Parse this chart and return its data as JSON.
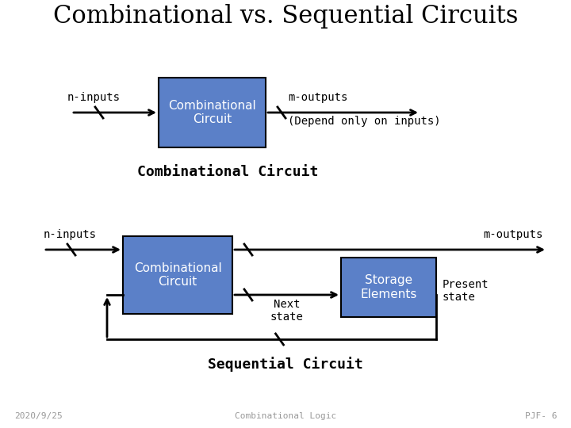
{
  "title": "Combinational vs. Sequential Circuits",
  "title_fontsize": 22,
  "title_font": "serif",
  "bg_color": "#ffffff",
  "box_color": "#5B80C8",
  "box_edge_color": "#000000",
  "text_color": "#000000",
  "font_color_white": "#ffffff",
  "comb_label": "Combinational\nCircuit",
  "storage_label": "Storage\nElements",
  "comb_circuit_label": "Combinational Circuit",
  "seq_circuit_label": "Sequential Circuit",
  "n_inputs": "n-inputs",
  "m_outputs": "m-outputs",
  "depend_label": "(Depend only on inputs)",
  "next_state": "Next\nstate",
  "present_state": "Present\nstate",
  "footer_left": "2020/9/25",
  "footer_center": "Combinational Logic",
  "footer_right": "PJF- 6",
  "footer_fontsize": 8
}
